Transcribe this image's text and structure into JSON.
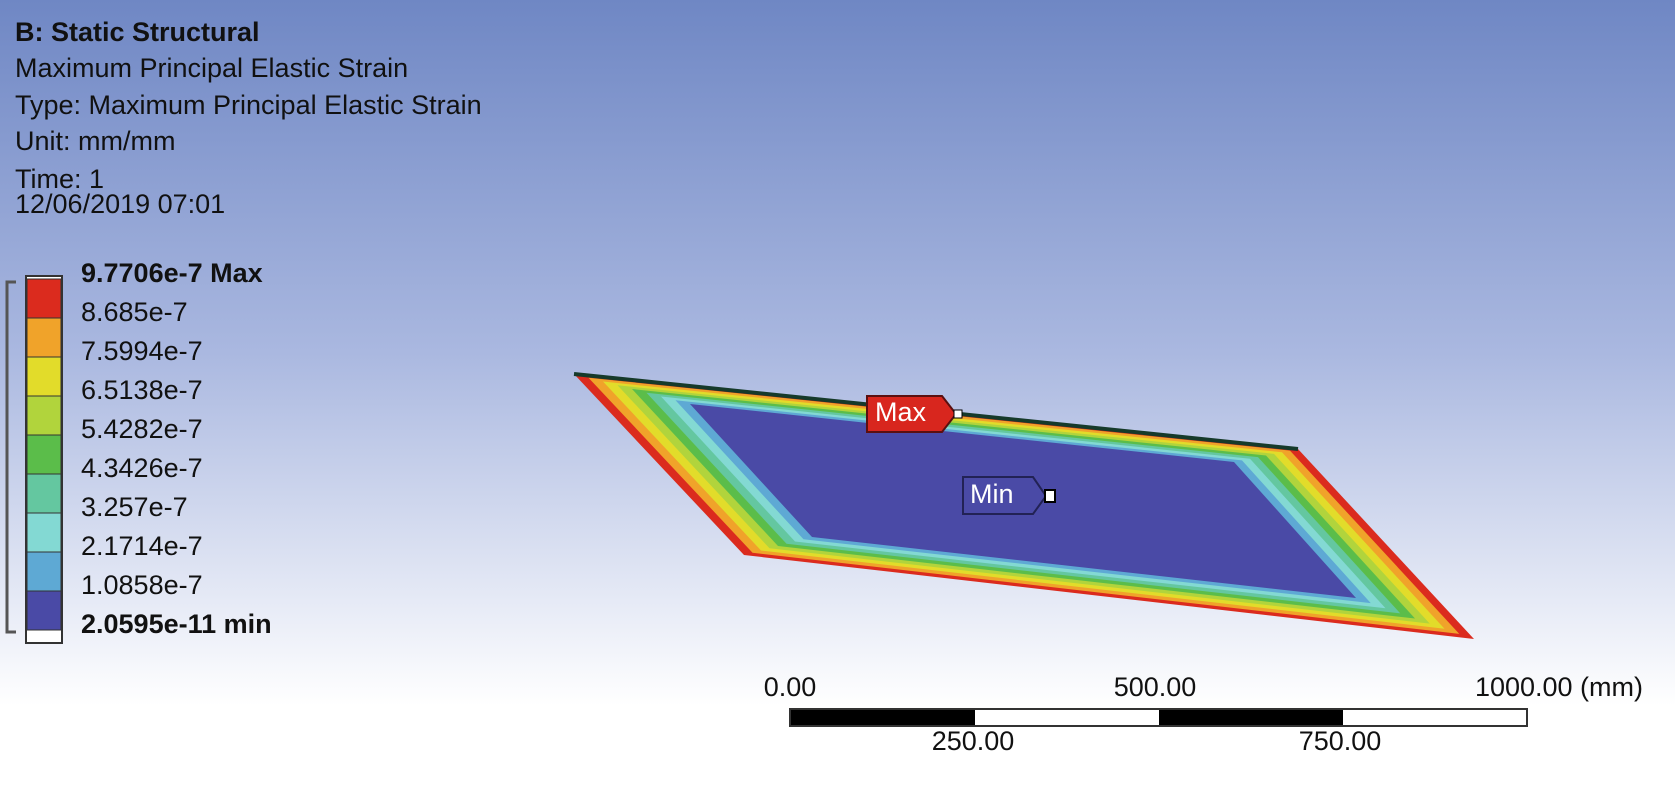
{
  "header": {
    "title": "B: Static Structural",
    "lines": [
      "Maximum Principal Elastic Strain",
      "Type: Maximum Principal Elastic Strain",
      "Unit: mm/mm",
      "Time: 1",
      "12/06/2019 07:01"
    ]
  },
  "legend": {
    "labels": [
      "9.7706e-7 Max",
      "8.685e-7",
      "7.5994e-7",
      "6.5138e-7",
      "5.4282e-7",
      "4.3426e-7",
      "3.257e-7",
      "2.1714e-7",
      "1.0858e-7",
      "2.0595e-11 min"
    ],
    "colors": [
      "#db2b1e",
      "#f0a32a",
      "#e2dc2a",
      "#b1d43c",
      "#5bbd4a",
      "#64c7a0",
      "#83d9d3",
      "#5ea9d4",
      "#4a4aa6"
    ]
  },
  "probes": {
    "max": "Max",
    "min": "Min"
  },
  "scale_bar": {
    "top_labels": [
      "0.00",
      "500.00",
      "1000.00 (mm)"
    ],
    "bottom_labels": [
      "250.00",
      "750.00"
    ]
  }
}
